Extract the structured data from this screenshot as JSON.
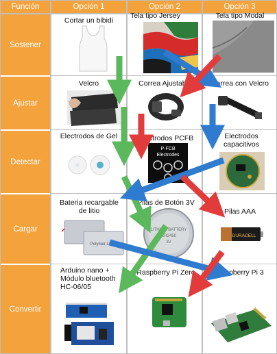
{
  "headers": [
    "Función",
    "Opción 1",
    "Opción 2",
    "Opción 3"
  ],
  "rows": [
    {
      "label": "Sostener",
      "options": [
        "Cortar un bibidi",
        "Tela tipo Jersey",
        "Tela tipo Modal"
      ]
    },
    {
      "label": "Ajustar",
      "options": [
        "Velcro",
        "Correa Ajustable",
        "Correa con Velcro"
      ]
    },
    {
      "label": "Detectar",
      "options": [
        "Electrodos de Gel",
        "Electrodos PCFB",
        "Electrodos capacitivos"
      ]
    },
    {
      "label": "Cargar",
      "options": [
        "Bateria recargable de litio",
        "Pilas de Botón 3V",
        "Pilas AAA"
      ]
    },
    {
      "label": "Convertir",
      "options": [
        "Arduino nano + Módulo bluetooth HC-06/05",
        "Raspberry Pi Zero",
        "Raspberry Pi 3"
      ]
    }
  ],
  "image_text": {
    "pcfb_board": [
      "P-FCB",
      "Electrodes"
    ],
    "button_cell": [
      "LITHIUM BATTERY",
      "CR2450",
      "3V"
    ],
    "aaa_brand": "DURACELL",
    "lipo_label": "Polymer Li-ion"
  },
  "colors": {
    "header": "#f4a23c",
    "arrow_green": "#5cb85c",
    "arrow_blue": "#2f7bd0",
    "arrow_red": "#e23b3b"
  }
}
